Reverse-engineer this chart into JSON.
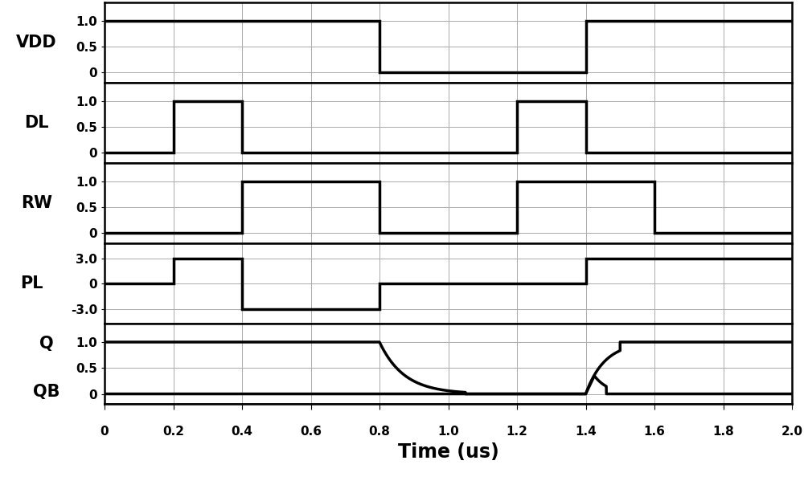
{
  "signals": {
    "VDD": {
      "segments": [
        [
          0,
          1.0
        ],
        [
          0.8,
          1.0
        ],
        [
          0.8,
          0.0
        ],
        [
          1.4,
          0.0
        ],
        [
          1.4,
          1.0
        ],
        [
          2.0,
          1.0
        ]
      ],
      "ylim": [
        -0.2,
        1.35
      ],
      "yticks": [
        0,
        0.5,
        1.0
      ],
      "yticklabels": [
        "0",
        "0.5",
        "1.0"
      ],
      "label": "VDD"
    },
    "DL": {
      "segments": [
        [
          0,
          0.0
        ],
        [
          0.2,
          0.0
        ],
        [
          0.2,
          1.0
        ],
        [
          0.4,
          1.0
        ],
        [
          0.4,
          0.0
        ],
        [
          1.2,
          0.0
        ],
        [
          1.2,
          1.0
        ],
        [
          1.4,
          1.0
        ],
        [
          1.4,
          0.0
        ],
        [
          2.0,
          0.0
        ]
      ],
      "ylim": [
        -0.2,
        1.35
      ],
      "yticks": [
        0,
        0.5,
        1.0
      ],
      "yticklabels": [
        "0",
        "0.5",
        "1.0"
      ],
      "label": "DL"
    },
    "RW": {
      "segments": [
        [
          0,
          0.0
        ],
        [
          0.4,
          0.0
        ],
        [
          0.4,
          1.0
        ],
        [
          0.8,
          1.0
        ],
        [
          0.8,
          0.0
        ],
        [
          1.2,
          0.0
        ],
        [
          1.2,
          1.0
        ],
        [
          1.6,
          1.0
        ],
        [
          1.6,
          0.0
        ],
        [
          2.0,
          0.0
        ]
      ],
      "ylim": [
        -0.2,
        1.35
      ],
      "yticks": [
        0,
        0.5,
        1.0
      ],
      "yticklabels": [
        "0",
        "0.5",
        "1.0"
      ],
      "label": "RW"
    },
    "PL": {
      "segments": [
        [
          0,
          0.0
        ],
        [
          0.2,
          0.0
        ],
        [
          0.2,
          3.0
        ],
        [
          0.4,
          3.0
        ],
        [
          0.4,
          -3.0
        ],
        [
          0.8,
          -3.0
        ],
        [
          0.8,
          0.0
        ],
        [
          1.4,
          0.0
        ],
        [
          1.4,
          3.0
        ],
        [
          2.0,
          3.0
        ]
      ],
      "ylim": [
        -4.8,
        4.8
      ],
      "yticks": [
        -3.0,
        0,
        3.0
      ],
      "yticklabels": [
        "-3.0",
        "0",
        "3.0"
      ],
      "label": "PL"
    },
    "Q_QB": {
      "ylim": [
        -0.2,
        1.35
      ],
      "yticks": [
        0,
        0.5,
        1.0
      ],
      "yticklabels": [
        "0",
        "0.5",
        "1.0"
      ],
      "label_Q": "Q",
      "label_QB": "QB"
    }
  },
  "signal_order": [
    "VDD",
    "DL",
    "RW",
    "PL",
    "Q_QB"
  ],
  "xlim": [
    0,
    2.0
  ],
  "xticks": [
    0,
    0.2,
    0.4,
    0.6,
    0.8,
    1.0,
    1.2,
    1.4,
    1.6,
    1.8,
    2.0
  ],
  "xticklabels": [
    "0",
    "0.2",
    "0.4",
    "0.6",
    "0.8",
    "1.0",
    "1.2",
    "1.4",
    "1.6",
    "1.8",
    "2.0"
  ],
  "xlabel": "Time (us)",
  "line_color": "black",
  "line_width": 2.5,
  "bg_color": "white",
  "label_fontsize": 15,
  "tick_fontsize": 11,
  "xlabel_fontsize": 17,
  "grid_color": "#aaaaaa",
  "grid_lw": 0.7,
  "spine_lw": 1.8
}
